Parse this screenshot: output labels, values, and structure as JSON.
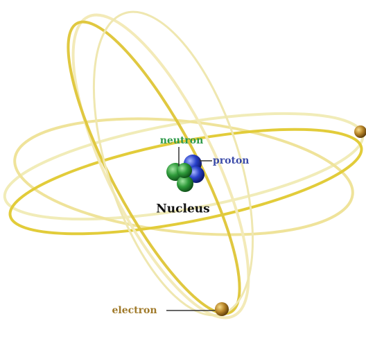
{
  "labels": {
    "neutron": "neutron",
    "proton": "proton",
    "nucleus": "Nucleus",
    "electron": "electron"
  }
}
